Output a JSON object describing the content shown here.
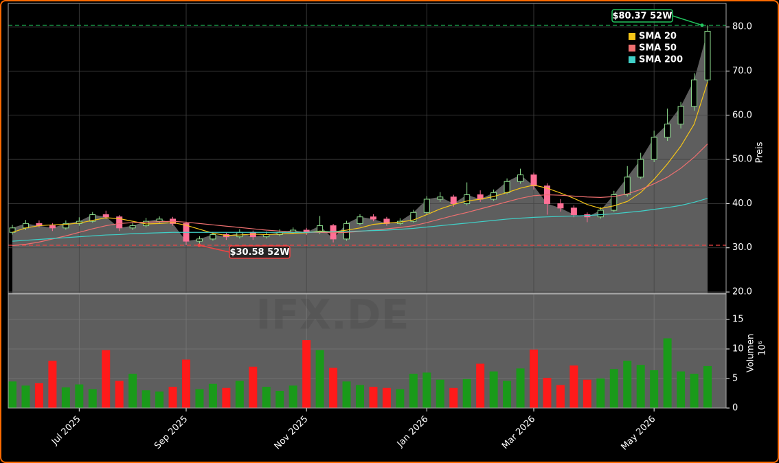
{
  "chart_data": {
    "type": "candlestick",
    "watermark": "IFX.DE",
    "categories": [
      null,
      null,
      null,
      null,
      null,
      "Jul 2025",
      null,
      null,
      null,
      null,
      null,
      null,
      null,
      "Sep 2025",
      null,
      null,
      null,
      null,
      null,
      null,
      null,
      null,
      "Nov 2025",
      null,
      null,
      null,
      null,
      null,
      null,
      null,
      null,
      "Jan 2026",
      null,
      null,
      null,
      null,
      null,
      null,
      null,
      "Mar 2026",
      null,
      null,
      null,
      null,
      null,
      null,
      null,
      null,
      "May 2026",
      null,
      null,
      null,
      null
    ],
    "open": [
      33.5,
      34.5,
      35.5,
      35,
      34.5,
      35.5,
      36,
      37.5,
      37,
      34.5,
      35,
      36,
      36.5,
      35.5,
      31.5,
      32,
      33,
      32.5,
      33.5,
      32.5,
      33,
      33.5,
      34,
      33.5,
      35,
      32,
      35.5,
      37,
      36.5,
      35.5,
      36,
      38,
      41,
      41.5,
      40,
      42,
      41,
      42.5,
      45,
      46.5,
      44,
      40,
      39,
      37.5,
      37,
      38.5,
      42,
      46,
      50,
      55,
      58,
      62,
      68
    ],
    "high": [
      35.2,
      36.3,
      36.2,
      35.6,
      36.2,
      36.9,
      38.1,
      38.4,
      37.4,
      35.8,
      36.8,
      37.1,
      37.0,
      35.9,
      32.6,
      33.6,
      33.4,
      34.2,
      33.9,
      33.7,
      34.2,
      34.6,
      34.5,
      37.2,
      35.4,
      36.1,
      37.6,
      37.6,
      37.0,
      36.7,
      38.6,
      41.7,
      42.6,
      42.0,
      44.8,
      43.0,
      43.2,
      45.7,
      47.9,
      47.0,
      44.6,
      41.0,
      39.6,
      38.0,
      39.2,
      42.9,
      48.5,
      51.5,
      56.5,
      61.5,
      63.0,
      69.5,
      80.37
    ],
    "low": [
      33.0,
      34.0,
      34.6,
      33.8,
      34.1,
      35.0,
      35.7,
      36.5,
      33.8,
      34.0,
      34.6,
      35.5,
      35.0,
      30.58,
      30.9,
      31.6,
      31.8,
      32.1,
      31.8,
      32.1,
      32.6,
      33.1,
      32.9,
      33.1,
      31.2,
      31.6,
      35.1,
      36.0,
      35.0,
      35.1,
      35.7,
      37.6,
      40.4,
      39.3,
      39.6,
      40.4,
      40.6,
      42.1,
      44.5,
      43.2,
      37.5,
      38.2,
      36.9,
      35.8,
      36.6,
      38.1,
      41.6,
      45.6,
      49.4,
      54.2,
      57.0,
      61.0,
      67.5
    ],
    "close": [
      34.5,
      35.5,
      35,
      34.5,
      35.5,
      36,
      37.5,
      37,
      34.5,
      35,
      36,
      36.5,
      35.5,
      31.5,
      32,
      33,
      32.5,
      33.5,
      32.5,
      33,
      33.5,
      34,
      33.5,
      35,
      32,
      35.5,
      37,
      36.5,
      35.5,
      36,
      38,
      41,
      41.5,
      40,
      42,
      41,
      42.5,
      45,
      46.5,
      44,
      40,
      39,
      37.5,
      37,
      38.5,
      42,
      46,
      50,
      55,
      58,
      62,
      68,
      79
    ],
    "up_color": "#8fe08f",
    "down_color": "#ff7096",
    "area_color": "#5e5e5e",
    "ylabel": "Preis",
    "ylim": [
      19.7,
      85.3
    ],
    "yticks": [
      {
        "value": 20,
        "label": "20.0"
      },
      {
        "value": 30,
        "label": "30.0"
      },
      {
        "value": 40,
        "label": "40.0"
      },
      {
        "value": 50,
        "label": "50.0"
      },
      {
        "value": 60,
        "label": "60.0"
      },
      {
        "value": 70,
        "label": "70.0"
      },
      {
        "value": 80,
        "label": "80.0"
      }
    ],
    "grid": true,
    "legend": "upper right",
    "series": [
      {
        "name": "SMA 20",
        "color": "#f5c518",
        "values": [
          33.5,
          34.5,
          35,
          35.2,
          35.3,
          35.6,
          36.2,
          36.8,
          36.6,
          36.0,
          35.4,
          35.5,
          35.7,
          35.1,
          34.2,
          33.3,
          32.8,
          32.9,
          33.1,
          33.0,
          33.1,
          33.3,
          33.4,
          33.8,
          33.6,
          34.0,
          34.5,
          35.3,
          35.6,
          35.8,
          36.3,
          37.5,
          38.8,
          39.8,
          40.6,
          41.0,
          41.6,
          42.5,
          43.5,
          44.2,
          43.5,
          42.4,
          41.2,
          39.8,
          38.9,
          39.5,
          40.5,
          42.5,
          45.5,
          49.0,
          53.0,
          58.0,
          67.5
        ]
      },
      {
        "name": "SMA 50",
        "color": "#f07070",
        "values": [
          30.5,
          30.8,
          31.3,
          32.0,
          32.7,
          33.5,
          34.3,
          35.0,
          35.5,
          35.7,
          35.8,
          35.9,
          36.0,
          35.8,
          35.5,
          35.2,
          34.9,
          34.6,
          34.3,
          34.0,
          33.8,
          33.6,
          33.5,
          33.5,
          33.4,
          33.5,
          33.7,
          34.0,
          34.3,
          34.6,
          35.0,
          35.7,
          36.5,
          37.3,
          38.0,
          38.8,
          39.6,
          40.4,
          41.2,
          41.8,
          42.0,
          41.9,
          41.7,
          41.5,
          41.4,
          41.6,
          42.2,
          43.2,
          44.5,
          46.0,
          48.0,
          50.5,
          53.5
        ]
      },
      {
        "name": "SMA 200",
        "color": "#40d0c8",
        "values": [
          31.5,
          31.7,
          31.9,
          32.1,
          32.3,
          32.5,
          32.7,
          32.9,
          33.0,
          33.2,
          33.3,
          33.4,
          33.5,
          33.5,
          33.5,
          33.5,
          33.5,
          33.5,
          33.5,
          33.5,
          33.5,
          33.5,
          33.5,
          33.6,
          33.6,
          33.7,
          33.8,
          33.9,
          34.0,
          34.2,
          34.4,
          34.7,
          35.0,
          35.3,
          35.6,
          35.9,
          36.2,
          36.5,
          36.7,
          36.9,
          37.0,
          37.1,
          37.2,
          37.3,
          37.5,
          37.7,
          38.0,
          38.3,
          38.7,
          39.1,
          39.6,
          40.3,
          41.2
        ]
      }
    ],
    "high_52w": {
      "value": 80.37,
      "label": "$80.37 52W",
      "color": "#22c55e"
    },
    "low_52w": {
      "value": 30.58,
      "label": "$30.58 52W",
      "color": "#ef4444"
    },
    "volume": {
      "label": "Volumen",
      "unit": "10⁶",
      "up_color": "#1a9a1a",
      "down_color": "#ff1a1a",
      "background": "#5e5e5e",
      "ylim": [
        0,
        19.3
      ],
      "yticks": [
        0,
        5,
        10,
        15
      ],
      "values": [
        4.5,
        3.8,
        4.2,
        8.0,
        3.5,
        4.0,
        3.2,
        9.8,
        4.6,
        5.8,
        3.0,
        2.8,
        3.6,
        8.2,
        3.2,
        4.1,
        3.4,
        4.6,
        7.0,
        3.6,
        2.9,
        3.8,
        11.5,
        9.8,
        6.8,
        4.5,
        3.9,
        3.6,
        3.4,
        3.2,
        5.8,
        6.0,
        4.8,
        3.4,
        4.9,
        7.5,
        6.2,
        4.6,
        6.7,
        9.9,
        5.1,
        3.9,
        7.2,
        4.8,
        5.0,
        6.6,
        8.0,
        7.3,
        6.4,
        11.8,
        6.2,
        5.8,
        7.1
      ]
    }
  }
}
